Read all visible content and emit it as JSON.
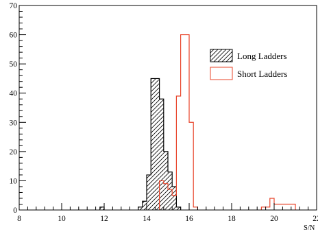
{
  "chart_data": {
    "type": "histogram",
    "title": "",
    "xlabel": "S/N",
    "ylabel": "",
    "xlim": [
      8,
      22
    ],
    "ylim": [
      0,
      70
    ],
    "x_ticks": [
      8,
      10,
      12,
      14,
      16,
      18,
      20,
      22
    ],
    "y_ticks": [
      0,
      10,
      20,
      30,
      40,
      50,
      60,
      70
    ],
    "legend": {
      "placement": "top-right"
    },
    "series": [
      {
        "name": "Long Ladders",
        "color": "#000000",
        "fill": "hatched",
        "bins": [
          {
            "x0": 11.8,
            "x1": 12.0,
            "count": 1
          },
          {
            "x0": 13.6,
            "x1": 13.8,
            "count": 1
          },
          {
            "x0": 13.8,
            "x1": 14.0,
            "count": 3
          },
          {
            "x0": 14.0,
            "x1": 14.2,
            "count": 12
          },
          {
            "x0": 14.2,
            "x1": 14.4,
            "count": 45
          },
          {
            "x0": 14.4,
            "x1": 14.6,
            "count": 45
          },
          {
            "x0": 14.6,
            "x1": 14.8,
            "count": 38
          },
          {
            "x0": 14.8,
            "x1": 15.0,
            "count": 20
          },
          {
            "x0": 15.0,
            "x1": 15.2,
            "count": 13
          },
          {
            "x0": 15.2,
            "x1": 15.4,
            "count": 8
          },
          {
            "x0": 15.4,
            "x1": 15.6,
            "count": 1
          }
        ]
      },
      {
        "name": "Short Ladders",
        "color": "#e8442a",
        "fill": "none",
        "bins": [
          {
            "x0": 14.6,
            "x1": 14.8,
            "count": 10
          },
          {
            "x0": 14.8,
            "x1": 15.0,
            "count": 9
          },
          {
            "x0": 15.0,
            "x1": 15.2,
            "count": 7
          },
          {
            "x0": 15.2,
            "x1": 15.4,
            "count": 5
          },
          {
            "x0": 15.4,
            "x1": 15.6,
            "count": 39
          },
          {
            "x0": 15.6,
            "x1": 15.8,
            "count": 60
          },
          {
            "x0": 15.8,
            "x1": 16.0,
            "count": 60
          },
          {
            "x0": 16.0,
            "x1": 16.2,
            "count": 30
          },
          {
            "x0": 16.2,
            "x1": 16.4,
            "count": 1
          },
          {
            "x0": 19.4,
            "x1": 19.6,
            "count": 1
          },
          {
            "x0": 19.6,
            "x1": 19.8,
            "count": 1
          },
          {
            "x0": 19.8,
            "x1": 20.0,
            "count": 4
          },
          {
            "x0": 20.0,
            "x1": 20.2,
            "count": 2
          },
          {
            "x0": 20.2,
            "x1": 20.4,
            "count": 2
          },
          {
            "x0": 20.4,
            "x1": 20.6,
            "count": 2
          },
          {
            "x0": 20.6,
            "x1": 20.8,
            "count": 2
          },
          {
            "x0": 20.8,
            "x1": 21.0,
            "count": 2
          }
        ]
      }
    ]
  }
}
